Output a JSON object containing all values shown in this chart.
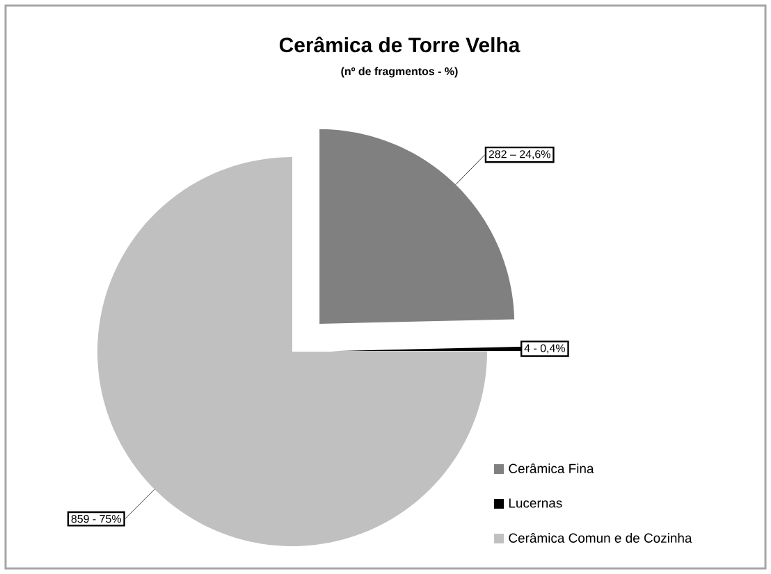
{
  "chart_data": {
    "type": "pie",
    "title": "Cerâmica de Torre Velha",
    "subtitle": "(nº de fragmentos - %)",
    "categories": [
      "Cerâmica Fina",
      "Lucernas",
      "Cerâmica Comun e de Cozinha"
    ],
    "values": [
      282,
      4,
      859
    ],
    "colors": [
      "#808080",
      "#000000",
      "#c0c0c0"
    ],
    "value_labels": [
      "282 – 24,6%",
      "4 - 0,4%",
      "859 - 75%"
    ],
    "legend": "right"
  }
}
